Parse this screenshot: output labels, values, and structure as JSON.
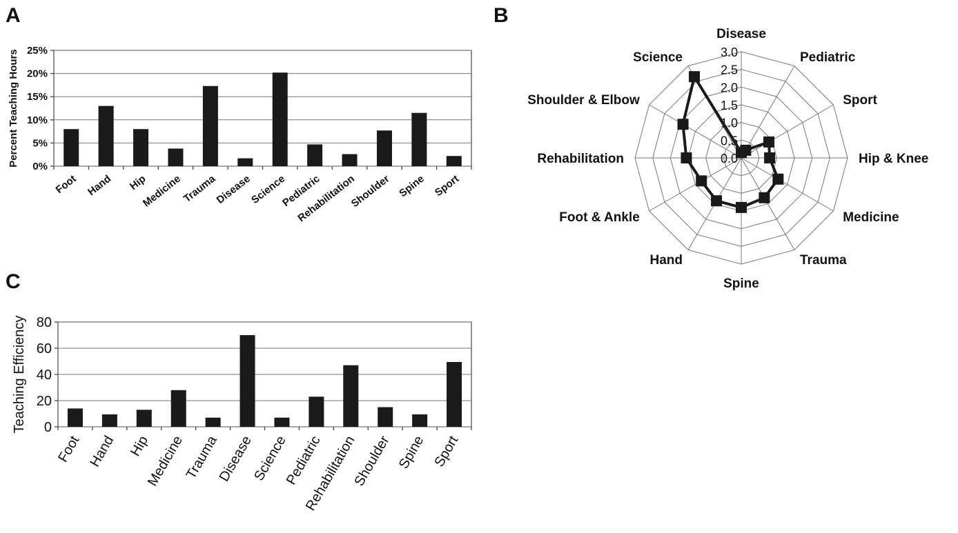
{
  "panels": {
    "a_label": "A",
    "b_label": "B",
    "c_label": "C"
  },
  "chart_data": [
    {
      "id": "A",
      "type": "bar",
      "categories": [
        "Foot",
        "Hand",
        "Hip",
        "Medicine",
        "Trauma",
        "Disease",
        "Science",
        "Pediatric",
        "Rehabilitation",
        "Shoulder",
        "Spine",
        "Sport"
      ],
      "values": [
        8.0,
        13.0,
        8.0,
        3.8,
        17.3,
        1.7,
        20.2,
        4.7,
        2.6,
        7.7,
        11.5,
        2.2
      ],
      "unit": "%",
      "ylabel": "Percent Teaching Hours",
      "ylim": [
        0,
        25
      ],
      "yticks": [
        "0%",
        "5%",
        "10%",
        "15%",
        "20%",
        "25%"
      ],
      "grid": true
    },
    {
      "id": "B",
      "type": "radar",
      "axes": [
        "Disease",
        "Pediatric",
        "Sport",
        "Hip & Knee",
        "Medicine",
        "Trauma",
        "Spine",
        "Hand",
        "Foot & Ankle",
        "Rehabilitation",
        "Shoulder & Elbow",
        "Science"
      ],
      "values": [
        0.15,
        0.25,
        0.9,
        0.8,
        1.2,
        1.3,
        1.4,
        1.4,
        1.3,
        1.55,
        1.9,
        2.65
      ],
      "rlim": [
        0,
        3.0
      ],
      "rticks": [
        "0.0",
        "0.5",
        "1.0",
        "1.5",
        "2.0",
        "2.5",
        "3.0"
      ],
      "grid": true
    },
    {
      "id": "C",
      "type": "bar",
      "categories": [
        "Foot",
        "Hand",
        "Hip",
        "Medicine",
        "Trauma",
        "Disease",
        "Science",
        "Pediatric",
        "Rehabilitation",
        "Shoulder",
        "Spine",
        "Sport"
      ],
      "values": [
        14,
        9.5,
        13,
        28,
        7,
        70,
        7,
        23,
        47,
        15,
        9.5,
        49.5
      ],
      "ylabel": "Teaching Efficiency",
      "ylim": [
        0,
        80
      ],
      "yticks": [
        "0",
        "20",
        "40",
        "60",
        "80"
      ],
      "grid": true
    }
  ]
}
